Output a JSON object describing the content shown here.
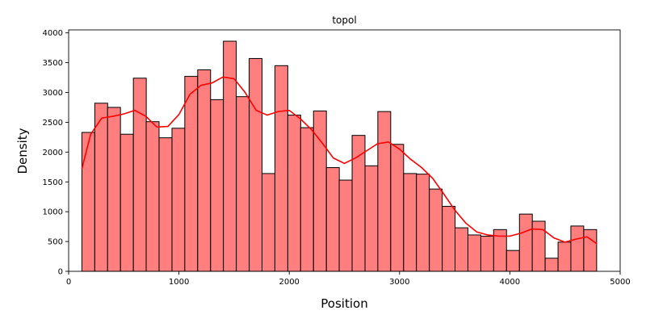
{
  "chart_data": {
    "type": "bar",
    "subtype": "histogram-with-kde",
    "title": "topol",
    "xlabel": "Position",
    "ylabel": "Density",
    "xlim": [
      0,
      5000
    ],
    "ylim": [
      0,
      4050
    ],
    "x_ticks": [
      0,
      1000,
      2000,
      3000,
      4000,
      5000
    ],
    "y_ticks": [
      0,
      500,
      1000,
      1500,
      2000,
      2500,
      3000,
      3500,
      4000
    ],
    "grid": false,
    "legend": "none",
    "bin_width": 116.7,
    "bins": [
      {
        "x0": 120,
        "value": 2330
      },
      {
        "x0": 237,
        "value": 2820
      },
      {
        "x0": 353,
        "value": 2750
      },
      {
        "x0": 470,
        "value": 2300
      },
      {
        "x0": 587,
        "value": 3240
      },
      {
        "x0": 703,
        "value": 2510
      },
      {
        "x0": 820,
        "value": 2240
      },
      {
        "x0": 937,
        "value": 2400
      },
      {
        "x0": 1053,
        "value": 3270
      },
      {
        "x0": 1170,
        "value": 3380
      },
      {
        "x0": 1287,
        "value": 2880
      },
      {
        "x0": 1403,
        "value": 3860
      },
      {
        "x0": 1520,
        "value": 2930
      },
      {
        "x0": 1637,
        "value": 3570
      },
      {
        "x0": 1753,
        "value": 1640
      },
      {
        "x0": 1870,
        "value": 3450
      },
      {
        "x0": 1987,
        "value": 2620
      },
      {
        "x0": 2103,
        "value": 2410
      },
      {
        "x0": 2220,
        "value": 2690
      },
      {
        "x0": 2337,
        "value": 1740
      },
      {
        "x0": 2453,
        "value": 1530
      },
      {
        "x0": 2570,
        "value": 2280
      },
      {
        "x0": 2687,
        "value": 1770
      },
      {
        "x0": 2803,
        "value": 2680
      },
      {
        "x0": 2920,
        "value": 2130
      },
      {
        "x0": 3037,
        "value": 1640
      },
      {
        "x0": 3153,
        "value": 1630
      },
      {
        "x0": 3270,
        "value": 1380
      },
      {
        "x0": 3387,
        "value": 1090
      },
      {
        "x0": 3503,
        "value": 730
      },
      {
        "x0": 3620,
        "value": 610
      },
      {
        "x0": 3737,
        "value": 590
      },
      {
        "x0": 3853,
        "value": 700
      },
      {
        "x0": 3970,
        "value": 350
      },
      {
        "x0": 4087,
        "value": 960
      },
      {
        "x0": 4203,
        "value": 840
      },
      {
        "x0": 4320,
        "value": 220
      },
      {
        "x0": 4437,
        "value": 490
      },
      {
        "x0": 4553,
        "value": 760
      },
      {
        "x0": 4670,
        "value": 700
      }
    ],
    "kde": {
      "x": [
        120,
        200,
        300,
        400,
        500,
        600,
        700,
        800,
        900,
        1000,
        1100,
        1200,
        1300,
        1400,
        1500,
        1600,
        1700,
        1800,
        1900,
        2000,
        2100,
        2200,
        2300,
        2400,
        2500,
        2600,
        2700,
        2800,
        2900,
        3000,
        3100,
        3200,
        3300,
        3400,
        3500,
        3600,
        3700,
        3800,
        3900,
        4000,
        4100,
        4200,
        4300,
        4400,
        4500,
        4600,
        4700,
        4790
      ],
      "y": [
        1720,
        2300,
        2570,
        2600,
        2640,
        2700,
        2600,
        2420,
        2430,
        2630,
        2970,
        3120,
        3160,
        3260,
        3230,
        3000,
        2700,
        2620,
        2680,
        2700,
        2560,
        2380,
        2150,
        1900,
        1810,
        1900,
        2020,
        2140,
        2170,
        2050,
        1880,
        1740,
        1560,
        1300,
        1030,
        810,
        660,
        610,
        590,
        590,
        640,
        710,
        700,
        560,
        490,
        540,
        580,
        460
      ]
    },
    "colors": {
      "bar_fill": "#ff7f7f",
      "bar_edge": "#000000",
      "kde_line": "#ff0000"
    }
  }
}
